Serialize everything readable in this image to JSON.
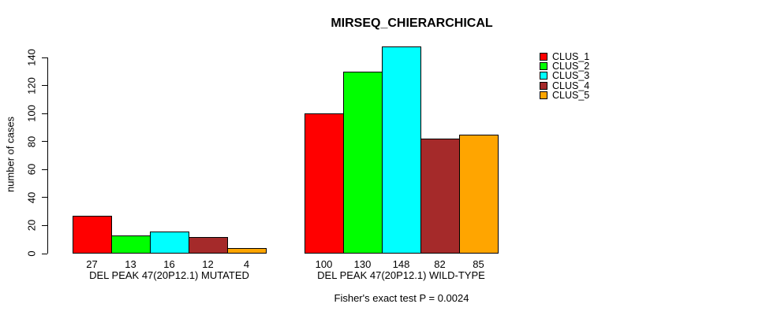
{
  "chart_data": {
    "type": "bar",
    "title": "MIRSEQ_CHIERARCHICAL",
    "ylabel": "number of cases",
    "xlabel": "",
    "ylim": [
      0,
      148
    ],
    "yticks": [
      0,
      20,
      40,
      60,
      80,
      100,
      120,
      140
    ],
    "grid": false,
    "legend_position": "top-right",
    "background_color": "#FFFFFF",
    "series": [
      {
        "name": "CLUS_1",
        "color": "#FF0000",
        "values": [
          27,
          100
        ]
      },
      {
        "name": "CLUS_2",
        "color": "#00FF00",
        "values": [
          13,
          130
        ]
      },
      {
        "name": "CLUS_3",
        "color": "#00FFFF",
        "values": [
          16,
          148
        ]
      },
      {
        "name": "CLUS_4",
        "color": "#A52A2A",
        "values": [
          12,
          82
        ]
      },
      {
        "name": "CLUS_5",
        "color": "#FFA500",
        "values": [
          4,
          85
        ]
      }
    ],
    "categories": [
      "DEL PEAK 47(20P12.1) MUTATED",
      "DEL PEAK 47(20P12.1) WILD-TYPE"
    ],
    "groups": [
      {
        "label": "DEL PEAK 47(20P12.1) MUTATED",
        "values": [
          27,
          13,
          16,
          12,
          4
        ]
      },
      {
        "label": "DEL PEAK 47(20P12.1) WILD-TYPE",
        "values": [
          100,
          130,
          148,
          82,
          85
        ]
      }
    ],
    "bar_value_labels_shown": true,
    "annotation": "Fisher's exact test P = 0.0024"
  }
}
